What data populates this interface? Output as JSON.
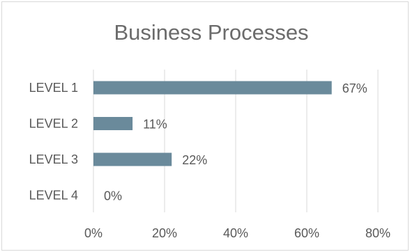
{
  "chart_data": {
    "type": "bar",
    "orientation": "horizontal",
    "title": "Business Processes",
    "categories": [
      "LEVEL 1",
      "LEVEL 2",
      "LEVEL 3",
      "LEVEL 4"
    ],
    "values": [
      67,
      11,
      22,
      0
    ],
    "value_labels": [
      "67%",
      "11%",
      "22%",
      "0%"
    ],
    "xlim": [
      0,
      80
    ],
    "xticks": [
      "0%",
      "20%",
      "40%",
      "60%",
      "80%"
    ],
    "grid": true,
    "legend": "none",
    "bar_color": "#6a8a9b"
  }
}
